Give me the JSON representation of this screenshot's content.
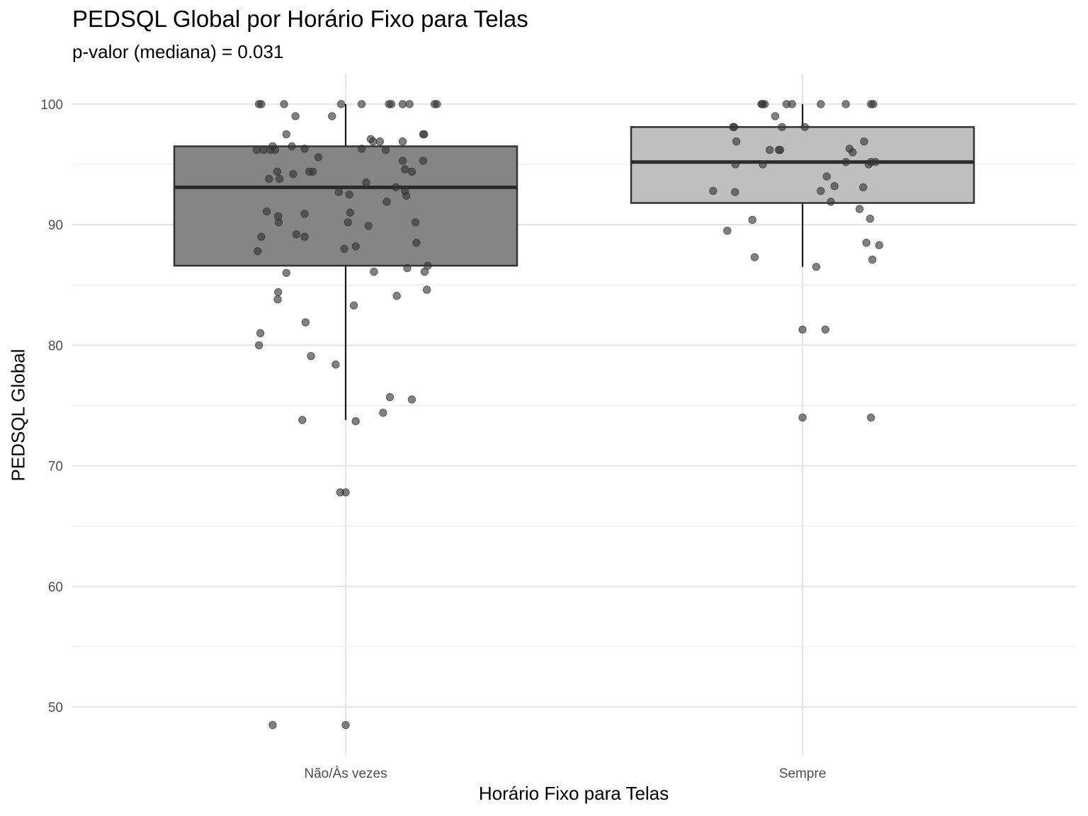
{
  "chart_data": {
    "type": "box",
    "title": "PEDSQL Global por Horário Fixo para Telas",
    "subtitle": "p-valor (mediana) = 0.031",
    "xlabel": "Horário Fixo para Telas",
    "ylabel": "PEDSQL Global",
    "ylim": [
      45.7,
      102.5
    ],
    "yticks": [
      50,
      60,
      70,
      80,
      90,
      100
    ],
    "categories": [
      "Não/Às vezes",
      "Sempre"
    ],
    "grid": true,
    "colors": {
      "box": [
        "#858585",
        "#bfbfbf"
      ],
      "outline": "#333333",
      "point": "#333333"
    },
    "boxes": [
      {
        "category": "Não/Às vezes",
        "q1": 86.6,
        "median": 93.1,
        "q3": 96.5,
        "whisker_low": 73.8,
        "whisker_high": 100.0
      },
      {
        "category": "Sempre",
        "q1": 91.8,
        "median": 95.2,
        "q3": 98.1,
        "whisker_low": 86.5,
        "whisker_high": 100.0
      }
    ],
    "series": [
      {
        "category": "Não/Às vezes",
        "points": [
          [
            -0.19,
            100
          ],
          [
            -0.185,
            100
          ],
          [
            -0.135,
            100
          ],
          [
            -0.01,
            100
          ],
          [
            0.035,
            100
          ],
          [
            0.095,
            100
          ],
          [
            0.1,
            100
          ],
          [
            0.125,
            100
          ],
          [
            0.14,
            100
          ],
          [
            0.195,
            100
          ],
          [
            0.2,
            100
          ],
          [
            -0.11,
            99.0
          ],
          [
            -0.03,
            99.0
          ],
          [
            -0.13,
            97.5
          ],
          [
            0.17,
            97.5
          ],
          [
            0.172,
            97.5
          ],
          [
            0.055,
            97.1
          ],
          [
            0.06,
            96.9
          ],
          [
            0.075,
            96.9
          ],
          [
            0.125,
            96.9
          ],
          [
            -0.118,
            96.5
          ],
          [
            -0.16,
            96.5
          ],
          [
            -0.195,
            96.2
          ],
          [
            -0.18,
            96.2
          ],
          [
            -0.165,
            96.2
          ],
          [
            -0.155,
            96.2
          ],
          [
            -0.09,
            96.3
          ],
          [
            0.035,
            96.3
          ],
          [
            0.088,
            96.2
          ],
          [
            -0.06,
            95.6
          ],
          [
            0.125,
            95.3
          ],
          [
            0.17,
            95.3
          ],
          [
            0.13,
            94.6
          ],
          [
            -0.15,
            94.4
          ],
          [
            -0.08,
            94.4
          ],
          [
            -0.072,
            94.4
          ],
          [
            0.145,
            94.4
          ],
          [
            -0.115,
            94.2
          ],
          [
            -0.168,
            93.8
          ],
          [
            -0.145,
            93.8
          ],
          [
            0.045,
            93.5
          ],
          [
            0.11,
            93.1
          ],
          [
            0.13,
            92.8
          ],
          [
            -0.015,
            92.7
          ],
          [
            0.008,
            92.5
          ],
          [
            0.133,
            92.4
          ],
          [
            0.09,
            91.9
          ],
          [
            -0.173,
            91.1
          ],
          [
            0.01,
            91.0
          ],
          [
            -0.09,
            90.9
          ],
          [
            -0.148,
            90.7
          ],
          [
            -0.147,
            90.2
          ],
          [
            0.005,
            90.2
          ],
          [
            0.05,
            89.9
          ],
          [
            0.153,
            90.2
          ],
          [
            -0.108,
            89.2
          ],
          [
            -0.09,
            89.0
          ],
          [
            -0.185,
            89.0
          ],
          [
            0.155,
            88.5
          ],
          [
            0.022,
            88.2
          ],
          [
            -0.003,
            88.0
          ],
          [
            -0.193,
            87.8
          ],
          [
            0.135,
            86.4
          ],
          [
            0.18,
            86.6
          ],
          [
            0.062,
            86.1
          ],
          [
            0.173,
            86.1
          ],
          [
            -0.13,
            86.0
          ],
          [
            0.178,
            84.6
          ],
          [
            -0.148,
            84.4
          ],
          [
            0.112,
            84.1
          ],
          [
            -0.149,
            83.8
          ],
          [
            0.018,
            83.3
          ],
          [
            -0.088,
            81.9
          ],
          [
            -0.187,
            81.0
          ],
          [
            -0.19,
            80.0
          ],
          [
            -0.076,
            79.1
          ],
          [
            -0.022,
            78.4
          ],
          [
            0.097,
            75.7
          ],
          [
            0.145,
            75.5
          ],
          [
            0.082,
            74.4
          ],
          [
            -0.095,
            73.8
          ],
          [
            0.022,
            73.7
          ],
          [
            -0.012,
            67.8
          ],
          [
            0.0,
            67.8
          ],
          [
            -0.16,
            48.5
          ],
          [
            0.0,
            48.5
          ]
        ]
      },
      {
        "category": "Sempre",
        "points": [
          [
            -0.09,
            100
          ],
          [
            -0.088,
            100
          ],
          [
            -0.083,
            100
          ],
          [
            -0.035,
            100
          ],
          [
            -0.023,
            100
          ],
          [
            0.04,
            100
          ],
          [
            0.095,
            100
          ],
          [
            0.15,
            100
          ],
          [
            0.155,
            100
          ],
          [
            -0.06,
            99.0
          ],
          [
            -0.152,
            98.1
          ],
          [
            -0.15,
            98.1
          ],
          [
            -0.045,
            98.1
          ],
          [
            0.005,
            98.1
          ],
          [
            -0.145,
            96.9
          ],
          [
            0.135,
            96.9
          ],
          [
            -0.072,
            96.2
          ],
          [
            -0.052,
            96.2
          ],
          [
            -0.049,
            96.2
          ],
          [
            0.103,
            96.3
          ],
          [
            0.11,
            96.0
          ],
          [
            -0.147,
            95.0
          ],
          [
            -0.087,
            95.0
          ],
          [
            0.095,
            95.2
          ],
          [
            0.15,
            95.2
          ],
          [
            0.16,
            95.2
          ],
          [
            0.145,
            95.0
          ],
          [
            0.053,
            94.0
          ],
          [
            -0.196,
            92.8
          ],
          [
            -0.148,
            92.7
          ],
          [
            0.04,
            92.8
          ],
          [
            0.07,
            93.2
          ],
          [
            0.133,
            93.1
          ],
          [
            0.062,
            91.9
          ],
          [
            0.125,
            91.3
          ],
          [
            -0.11,
            90.4
          ],
          [
            0.148,
            90.5
          ],
          [
            -0.165,
            89.5
          ],
          [
            0.14,
            88.5
          ],
          [
            0.168,
            88.3
          ],
          [
            -0.105,
            87.3
          ],
          [
            0.153,
            87.1
          ],
          [
            0.03,
            86.5
          ],
          [
            0.0,
            81.3
          ],
          [
            0.05,
            81.3
          ],
          [
            0.0,
            74.0
          ],
          [
            0.15,
            74.0
          ]
        ]
      }
    ]
  }
}
